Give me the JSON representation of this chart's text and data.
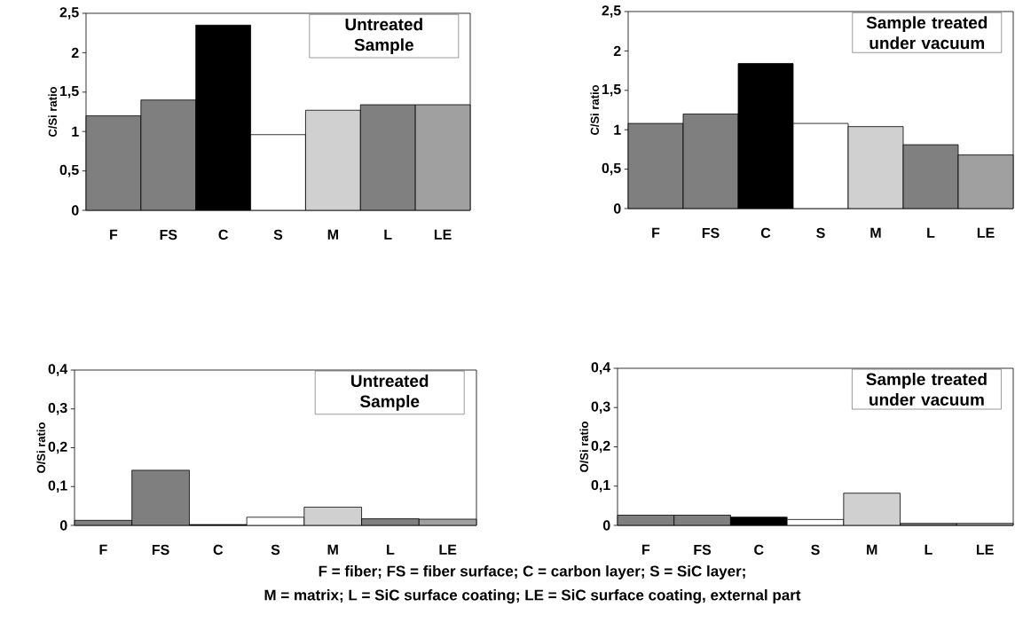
{
  "chart_data": [
    {
      "type": "bar",
      "title": "Untreated Sample",
      "ylabel": "C/Si ratio",
      "categories": [
        "F",
        "FS",
        "C",
        "S",
        "M",
        "L",
        "LE"
      ],
      "values": [
        1.2,
        1.4,
        2.35,
        0.96,
        1.27,
        1.34,
        1.34
      ],
      "colors": [
        "#7f7f7f",
        "#7f7f7f",
        "#000000",
        "#ffffff",
        "#d0d0d0",
        "#808080",
        "#a0a0a0"
      ],
      "ylim": [
        0,
        2.5
      ],
      "yticks": [
        0,
        {
          "value": 0.5,
          "label": "0,5"
        },
        1,
        {
          "value": 1.5,
          "label": "1,5"
        },
        2,
        {
          "value": 2.5,
          "label": "2,5"
        }
      ]
    },
    {
      "type": "bar",
      "title": "Sample treated under vacuum",
      "ylabel": "C/Si ratio",
      "categories": [
        "F",
        "FS",
        "C",
        "S",
        "M",
        "L",
        "LE"
      ],
      "values": [
        1.08,
        1.2,
        1.84,
        1.08,
        1.04,
        0.81,
        0.68
      ],
      "colors": [
        "#7f7f7f",
        "#7f7f7f",
        "#000000",
        "#ffffff",
        "#d0d0d0",
        "#808080",
        "#a0a0a0"
      ],
      "ylim": [
        0,
        2.5
      ],
      "yticks": [
        0,
        {
          "value": 0.5,
          "label": "0,5"
        },
        1,
        {
          "value": 1.5,
          "label": "1,5"
        },
        2,
        {
          "value": 2.5,
          "label": "2,5"
        }
      ]
    },
    {
      "type": "bar",
      "title": "Untreated Sample",
      "ylabel": "O/Si ratio",
      "categories": [
        "F",
        "FS",
        "C",
        "S",
        "M",
        "L",
        "LE"
      ],
      "values": [
        0.013,
        0.142,
        0.002,
        0.021,
        0.047,
        0.017,
        0.016
      ],
      "colors": [
        "#7f7f7f",
        "#7f7f7f",
        "#000000",
        "#ffffff",
        "#d0d0d0",
        "#808080",
        "#a0a0a0"
      ],
      "ylim": [
        0,
        0.4
      ],
      "yticks": [
        0,
        {
          "value": 0.1,
          "label": "0,1"
        },
        {
          "value": 0.2,
          "label": "0,2"
        },
        {
          "value": 0.3,
          "label": "0,3"
        },
        {
          "value": 0.4,
          "label": "0,4"
        }
      ]
    },
    {
      "type": "bar",
      "title": "Sample treated under vacuum",
      "ylabel": "O/Si ratio",
      "categories": [
        "F",
        "FS",
        "C",
        "S",
        "M",
        "L",
        "LE"
      ],
      "values": [
        0.026,
        0.026,
        0.021,
        0.015,
        0.082,
        0.005,
        0.005
      ],
      "colors": [
        "#7f7f7f",
        "#7f7f7f",
        "#000000",
        "#ffffff",
        "#d0d0d0",
        "#808080",
        "#a0a0a0"
      ],
      "ylim": [
        0,
        0.4
      ],
      "yticks": [
        0,
        {
          "value": 0.1,
          "label": "0,1"
        },
        {
          "value": 0.2,
          "label": "0,2"
        },
        {
          "value": 0.3,
          "label": "0,3"
        },
        {
          "value": 0.4,
          "label": "0,4"
        }
      ],
      "annotations": [
        "F = fiber; FS = fiber surface; C = carbon layer; S = SiC layer;",
        "M = matrix; L = SiC surface coating;  LE = SiC surface coating, external part"
      ]
    }
  ]
}
